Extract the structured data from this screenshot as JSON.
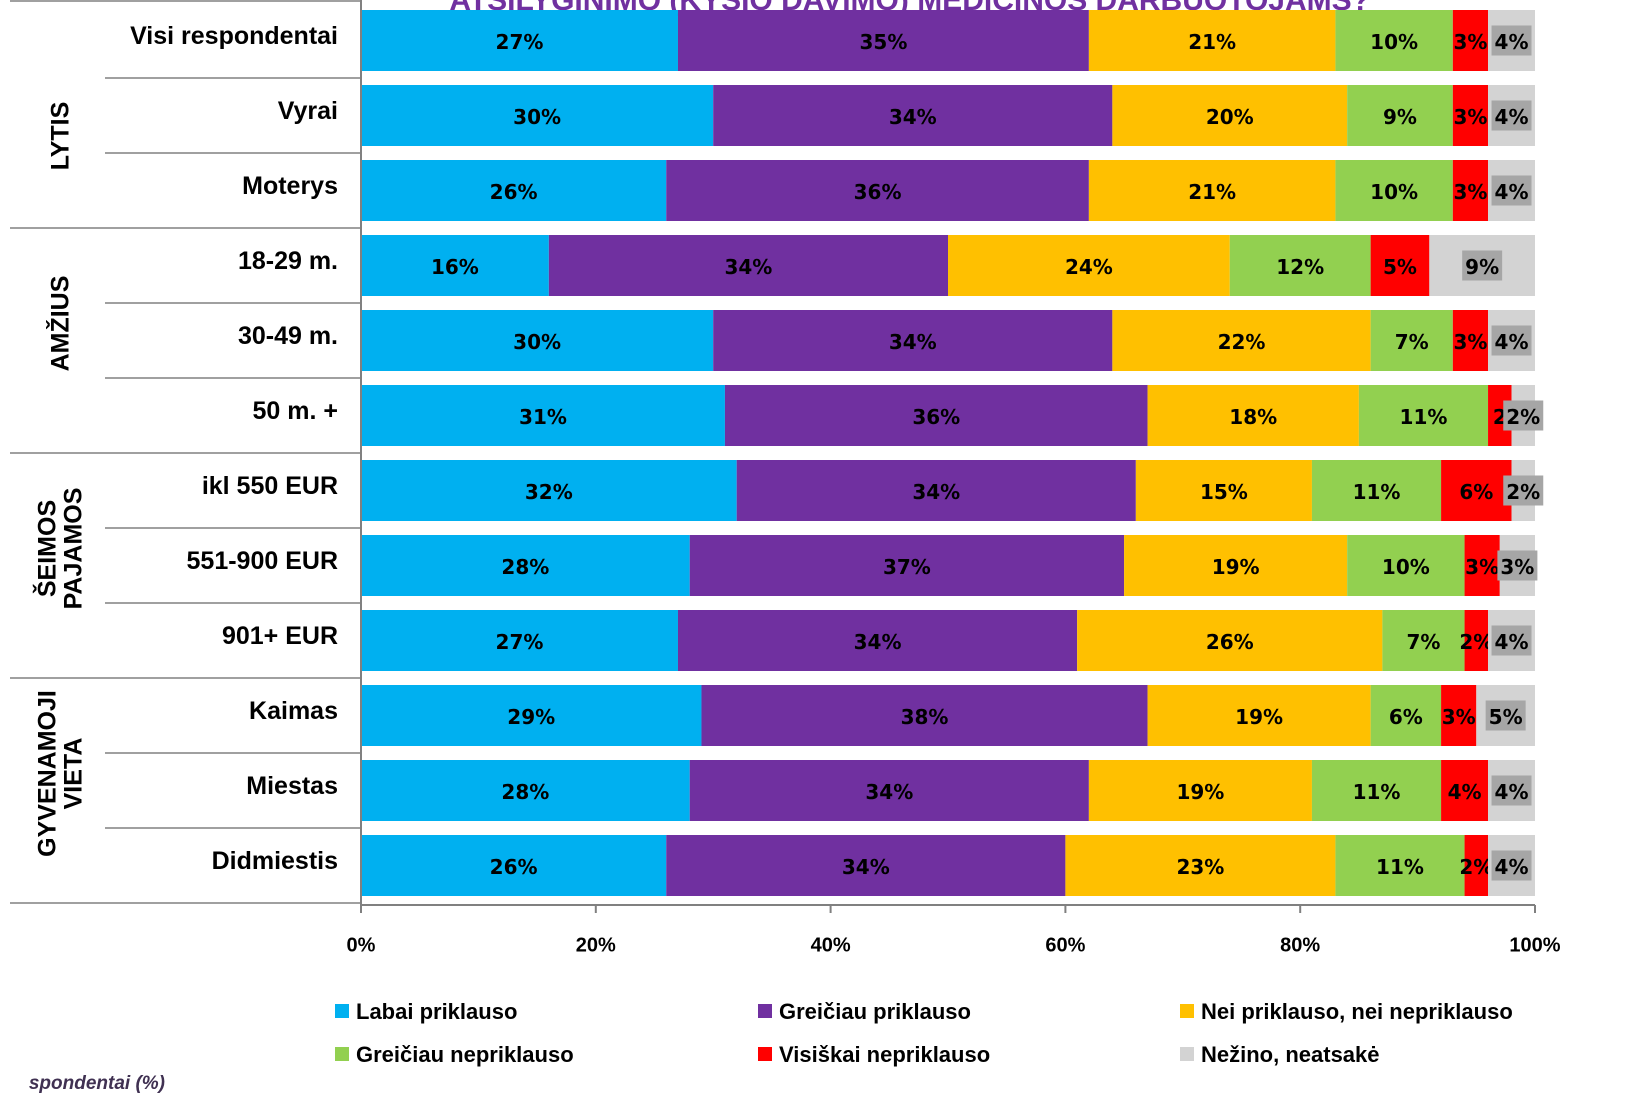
{
  "chart_data": {
    "type": "stacked-bar-horizontal",
    "title": "ATSILYGINIMO (KYŠIO DAVIMO) MEDICINOS DARBUOTOJAMS?",
    "footnote": "spondentai (%)",
    "categories": [
      "Visi respondentai",
      "Vyrai",
      "Moterys",
      "18-29 m.",
      "30-49 m.",
      "50 m. +",
      "ikl 550 EUR",
      "551-900 EUR",
      "901+  EUR",
      "Kaimas",
      "Miestas",
      "Didmiestis"
    ],
    "groups": [
      [
        "LYTIS"
      ],
      [
        "AMŽIUS"
      ],
      [
        "ŠEIMOS",
        "PAJAMOS"
      ],
      [
        "GYVENAMOJI",
        "VIETA"
      ]
    ],
    "series": [
      {
        "name": "Labai priklauso",
        "color": "#00b0f0",
        "values": [
          27,
          30,
          26,
          16,
          30,
          31,
          32,
          28,
          27,
          29,
          28,
          26
        ],
        "value_labels": [
          "27%",
          "30%",
          "26%",
          "16%",
          "30%",
          "31%",
          "32%",
          "28%",
          "27%",
          "29%",
          "28%",
          "26%"
        ]
      },
      {
        "name": "Greičiau priklauso",
        "color": "#7030a0",
        "values": [
          35,
          34,
          36,
          34,
          34,
          36,
          34,
          37,
          34,
          38,
          34,
          34
        ],
        "value_labels": [
          "35%",
          "34%",
          "36%",
          "34%",
          "34%",
          "36%",
          "34%",
          "37%",
          "34%",
          "38%",
          "34%",
          "34%"
        ]
      },
      {
        "name": "Nei priklauso, nei nepriklauso",
        "color": "#ffc000",
        "values": [
          21,
          20,
          21,
          24,
          22,
          18,
          15,
          19,
          26,
          19,
          19,
          23
        ],
        "value_labels": [
          "21%",
          "20%",
          "21%",
          "24%",
          "22%",
          "18%",
          "15%",
          "19%",
          "26%",
          "19%",
          "19%",
          "23%"
        ]
      },
      {
        "name": "Greičiau nepriklauso",
        "color": "#92d050",
        "values": [
          10,
          9,
          10,
          12,
          7,
          11,
          11,
          10,
          7,
          6,
          11,
          11
        ],
        "value_labels": [
          "10%",
          "9%",
          "10%",
          "12%",
          "7%",
          "11%",
          "11%",
          "10%",
          "7%",
          "6%",
          "11%",
          "11%"
        ]
      },
      {
        "name": "Visiškai nepriklauso",
        "color": "#ff0000",
        "values": [
          3,
          3,
          3,
          5,
          3,
          2,
          6,
          3,
          2,
          3,
          4,
          2
        ],
        "value_labels": [
          "3%",
          "3%",
          "3%",
          "5%",
          "3%",
          "2",
          "6%",
          "3%",
          "2%",
          "3%",
          "4%",
          "2%"
        ]
      },
      {
        "name": "Nežino, neatsakė",
        "color": "#d3d3d3",
        "values": [
          4,
          4,
          4,
          9,
          4,
          2,
          2,
          3,
          4,
          5,
          4,
          4
        ],
        "value_labels": [
          "4%",
          "4%",
          "4%",
          "9%",
          "4%",
          "2%",
          "2%",
          "3%",
          "4%",
          "5%",
          "4%",
          "4%"
        ]
      }
    ],
    "xlim": [
      0,
      100
    ],
    "xticks": [
      {
        "value": 0,
        "label": "0%"
      },
      {
        "value": 20,
        "label": "20%"
      },
      {
        "value": 40,
        "label": "40%"
      },
      {
        "value": 60,
        "label": "60%"
      },
      {
        "value": 80,
        "label": "80%"
      },
      {
        "value": 100,
        "label": "100%"
      }
    ]
  }
}
